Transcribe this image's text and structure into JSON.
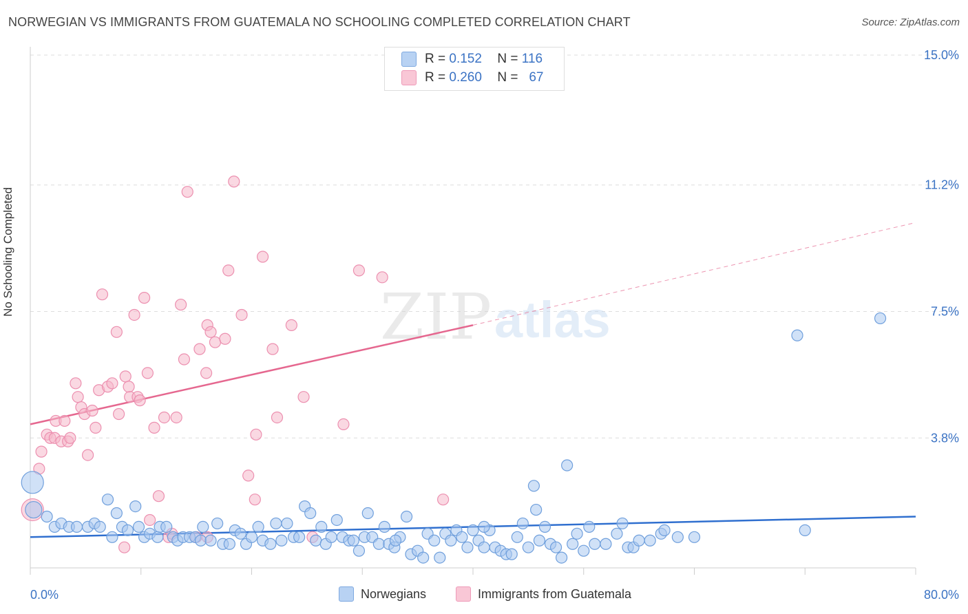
{
  "title": "NORWEGIAN VS IMMIGRANTS FROM GUATEMALA NO SCHOOLING COMPLETED CORRELATION CHART",
  "source": "Source: ZipAtlas.com",
  "watermark": {
    "zip": "ZIP",
    "atlas": "atlas"
  },
  "legend": {
    "row1": {
      "r_label": "R =",
      "r_value": "0.152",
      "n_label": "N =",
      "n_value": "116"
    },
    "row2": {
      "r_label": "R =",
      "r_value": "0.260",
      "n_label": "N =",
      "n_value": "67"
    }
  },
  "bottom_legend": {
    "series1": "Norwegians",
    "series2": "Immigrants from Guatemala"
  },
  "colors": {
    "blue_fill": "#a9c8f0",
    "blue_stroke": "#6f9fdc",
    "blue_line": "#2f6fcf",
    "pink_fill": "#f6b8cb",
    "pink_stroke": "#ec8faf",
    "pink_line": "#e5678f",
    "axis_text": "#3b73c4",
    "grid": "#dddddd"
  },
  "chart_data": {
    "type": "scatter",
    "title": "NORWEGIAN VS IMMIGRANTS FROM GUATEMALA NO SCHOOLING COMPLETED CORRELATION CHART",
    "xlabel": "",
    "ylabel": "No Schooling Completed",
    "xlim": [
      0,
      80
    ],
    "ylim": [
      0,
      15.5
    ],
    "x_tick_labels": [
      "0.0%",
      "80.0%"
    ],
    "y_ticks": [
      3.8,
      7.5,
      11.2,
      15.0
    ],
    "y_tick_labels": [
      "3.8%",
      "7.5%",
      "11.2%",
      "15.0%"
    ],
    "grid": true,
    "legend_position": "top-center",
    "series": [
      {
        "name": "Norwegians",
        "r": 0.152,
        "n": 116,
        "trend": {
          "x": [
            0,
            80
          ],
          "y": [
            0.9,
            1.5
          ]
        },
        "points": [
          [
            0.2,
            2.5,
            "L"
          ],
          [
            0.3,
            1.7,
            "M"
          ],
          [
            1.5,
            1.5
          ],
          [
            2.2,
            1.2
          ],
          [
            2.8,
            1.3
          ],
          [
            3.5,
            1.2
          ],
          [
            4.2,
            1.2
          ],
          [
            5.2,
            1.2
          ],
          [
            5.8,
            1.3
          ],
          [
            6.3,
            1.2
          ],
          [
            7.0,
            2.0
          ],
          [
            7.4,
            0.9
          ],
          [
            7.8,
            1.6
          ],
          [
            8.3,
            1.2
          ],
          [
            8.8,
            1.1
          ],
          [
            9.5,
            1.8
          ],
          [
            9.8,
            1.2
          ],
          [
            10.3,
            0.9
          ],
          [
            10.8,
            1.0
          ],
          [
            11.5,
            0.9
          ],
          [
            11.7,
            1.2
          ],
          [
            12.3,
            1.2
          ],
          [
            12.9,
            0.9
          ],
          [
            13.3,
            0.8
          ],
          [
            13.8,
            0.9
          ],
          [
            14.4,
            0.9
          ],
          [
            14.9,
            0.9
          ],
          [
            15.4,
            0.8
          ],
          [
            15.6,
            1.2
          ],
          [
            16.3,
            0.8
          ],
          [
            16.9,
            1.3
          ],
          [
            17.4,
            0.7
          ],
          [
            18.0,
            0.7
          ],
          [
            18.5,
            1.1
          ],
          [
            19.0,
            1.0
          ],
          [
            19.5,
            0.7
          ],
          [
            20.0,
            0.9
          ],
          [
            20.6,
            1.2
          ],
          [
            21.0,
            0.8
          ],
          [
            21.7,
            0.7
          ],
          [
            22.2,
            1.3
          ],
          [
            22.7,
            0.8
          ],
          [
            23.2,
            1.3
          ],
          [
            23.8,
            0.9
          ],
          [
            24.3,
            0.9
          ],
          [
            24.8,
            1.8
          ],
          [
            25.3,
            1.6
          ],
          [
            25.8,
            0.8
          ],
          [
            26.3,
            1.2
          ],
          [
            26.7,
            0.7
          ],
          [
            27.2,
            0.9
          ],
          [
            27.7,
            1.4
          ],
          [
            28.2,
            0.9
          ],
          [
            28.8,
            0.8
          ],
          [
            29.2,
            0.8
          ],
          [
            29.7,
            0.5
          ],
          [
            30.2,
            0.9
          ],
          [
            30.5,
            1.6
          ],
          [
            30.9,
            0.9
          ],
          [
            31.5,
            0.7
          ],
          [
            32.0,
            1.2
          ],
          [
            32.4,
            0.7
          ],
          [
            32.9,
            0.6
          ],
          [
            33.4,
            0.9
          ],
          [
            34.0,
            1.5
          ],
          [
            34.4,
            0.4
          ],
          [
            35.0,
            0.5
          ],
          [
            35.5,
            0.3
          ],
          [
            35.9,
            1.0
          ],
          [
            36.5,
            0.8
          ],
          [
            37.0,
            0.3
          ],
          [
            37.5,
            1.0
          ],
          [
            38.0,
            0.8
          ],
          [
            38.5,
            1.1
          ],
          [
            39.0,
            0.9
          ],
          [
            39.5,
            0.6
          ],
          [
            40.0,
            1.1
          ],
          [
            40.5,
            0.8
          ],
          [
            41.0,
            0.6
          ],
          [
            41.5,
            1.1
          ],
          [
            42.0,
            0.6
          ],
          [
            42.5,
            0.5
          ],
          [
            43.0,
            0.4
          ],
          [
            43.5,
            0.4
          ],
          [
            44.0,
            0.9
          ],
          [
            44.5,
            1.3
          ],
          [
            45.0,
            0.6
          ],
          [
            45.5,
            2.4
          ],
          [
            45.7,
            1.7
          ],
          [
            46.0,
            0.8
          ],
          [
            46.5,
            1.2
          ],
          [
            47.0,
            0.7
          ],
          [
            47.5,
            0.6
          ],
          [
            48.0,
            0.3
          ],
          [
            48.5,
            3.0
          ],
          [
            49.0,
            0.7
          ],
          [
            49.4,
            1.0
          ],
          [
            50.0,
            0.5
          ],
          [
            50.5,
            1.2
          ],
          [
            51.0,
            0.7
          ],
          [
            52.0,
            0.7
          ],
          [
            53.0,
            1.0
          ],
          [
            53.5,
            1.3
          ],
          [
            54.0,
            0.6
          ],
          [
            54.5,
            0.6
          ],
          [
            55.0,
            0.8
          ],
          [
            56.0,
            0.8
          ],
          [
            57.0,
            1.0
          ],
          [
            57.3,
            1.1
          ],
          [
            58.5,
            0.9
          ],
          [
            60.0,
            0.9
          ],
          [
            70.0,
            1.1
          ],
          [
            69.3,
            6.8
          ],
          [
            76.8,
            7.3
          ],
          [
            41.0,
            1.2
          ],
          [
            33.0,
            0.8
          ]
        ]
      },
      {
        "name": "Immigrants from Guatemala",
        "r": 0.26,
        "n": 67,
        "trend": {
          "x": [
            0,
            40
          ],
          "y": [
            4.2,
            7.1
          ]
        },
        "trend_dashed": {
          "x": [
            40,
            80
          ],
          "y": [
            7.1,
            10.1
          ]
        },
        "points": [
          [
            0.2,
            1.7,
            "L"
          ],
          [
            0.8,
            2.9
          ],
          [
            1.0,
            3.4
          ],
          [
            1.5,
            3.9
          ],
          [
            1.8,
            3.8
          ],
          [
            2.2,
            3.8
          ],
          [
            2.3,
            4.3
          ],
          [
            2.8,
            3.7
          ],
          [
            3.1,
            4.3
          ],
          [
            3.4,
            3.7
          ],
          [
            3.6,
            3.8
          ],
          [
            4.1,
            5.4
          ],
          [
            4.3,
            5.0
          ],
          [
            4.6,
            4.7
          ],
          [
            4.9,
            4.5
          ],
          [
            5.2,
            3.3
          ],
          [
            5.6,
            4.6
          ],
          [
            5.9,
            4.1
          ],
          [
            6.2,
            5.2
          ],
          [
            6.5,
            8.0
          ],
          [
            7.0,
            5.3
          ],
          [
            7.4,
            5.4
          ],
          [
            7.8,
            6.9
          ],
          [
            8.0,
            4.5
          ],
          [
            8.6,
            5.6
          ],
          [
            8.9,
            5.3
          ],
          [
            9.0,
            5.0
          ],
          [
            9.4,
            7.4
          ],
          [
            9.7,
            5.0
          ],
          [
            9.9,
            4.9
          ],
          [
            10.3,
            7.9
          ],
          [
            10.6,
            5.7
          ],
          [
            10.8,
            1.4
          ],
          [
            11.2,
            4.1
          ],
          [
            11.6,
            2.1
          ],
          [
            12.1,
            4.4
          ],
          [
            12.5,
            0.9
          ],
          [
            12.8,
            1.0
          ],
          [
            13.2,
            4.4
          ],
          [
            13.6,
            7.7
          ],
          [
            13.9,
            6.1
          ],
          [
            14.2,
            11.0
          ],
          [
            15.0,
            0.9
          ],
          [
            15.3,
            6.4
          ],
          [
            15.9,
            5.7
          ],
          [
            16.0,
            7.1
          ],
          [
            16.3,
            6.9
          ],
          [
            16.7,
            6.6
          ],
          [
            17.6,
            6.7
          ],
          [
            17.9,
            8.7
          ],
          [
            18.4,
            11.3
          ],
          [
            19.1,
            7.4
          ],
          [
            19.7,
            2.7
          ],
          [
            20.3,
            2.0
          ],
          [
            20.4,
            3.9
          ],
          [
            21.0,
            9.1
          ],
          [
            21.9,
            6.4
          ],
          [
            22.3,
            4.4
          ],
          [
            23.6,
            7.1
          ],
          [
            24.7,
            5.0
          ],
          [
            25.5,
            0.9
          ],
          [
            28.3,
            4.2
          ],
          [
            29.7,
            8.7
          ],
          [
            31.8,
            8.5
          ],
          [
            37.3,
            2.0
          ],
          [
            8.5,
            0.6
          ],
          [
            16.0,
            0.9
          ]
        ]
      }
    ]
  }
}
